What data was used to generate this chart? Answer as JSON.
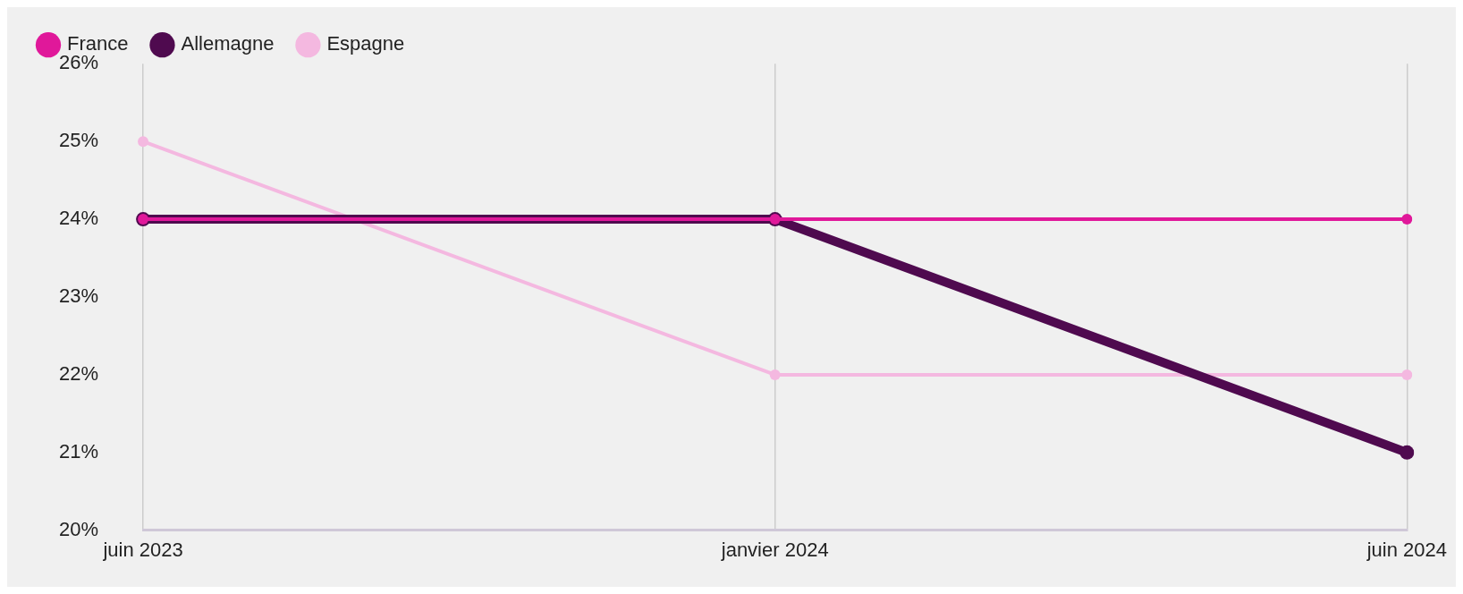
{
  "chart_data": {
    "type": "line",
    "categories": [
      "juin 2023",
      "janvier 2024",
      "juin 2024"
    ],
    "series": [
      {
        "name": "France",
        "color": "#e0189a",
        "values": [
          24,
          24,
          24
        ]
      },
      {
        "name": "Allemagne",
        "color": "#4f0a4f",
        "values": [
          24,
          24,
          21
        ]
      },
      {
        "name": "Espagne",
        "color": "#f4b8e0",
        "values": [
          25,
          22,
          22
        ]
      }
    ],
    "ylim": [
      20,
      26
    ],
    "yticks": [
      {
        "value": 20,
        "label": "20%"
      },
      {
        "value": 21,
        "label": "21%"
      },
      {
        "value": 22,
        "label": "22%"
      },
      {
        "value": 23,
        "label": "23%"
      },
      {
        "value": 24,
        "label": "24%"
      },
      {
        "value": 25,
        "label": "25%"
      },
      {
        "value": 26,
        "label": "26%"
      }
    ],
    "grid": "x",
    "legend": "top left",
    "marker": "circle",
    "line_style": "solid"
  }
}
